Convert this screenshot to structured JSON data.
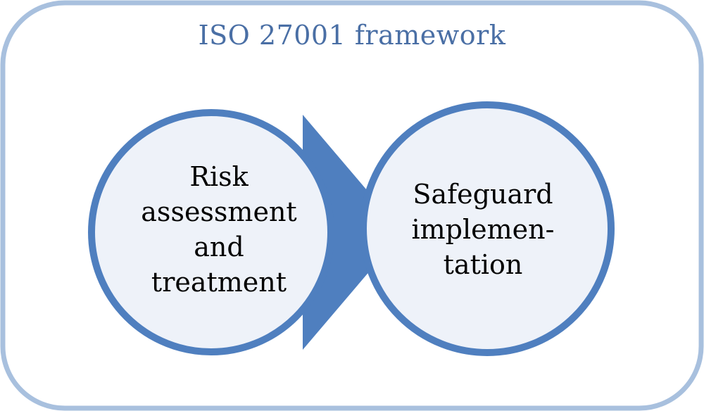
{
  "diagram": {
    "title": "ISO 27001 framework",
    "nodes": [
      {
        "id": "risk",
        "lines": [
          "Risk",
          "assessment",
          "and",
          "treatment"
        ]
      },
      {
        "id": "safeguard",
        "lines": [
          "Safeguard",
          "implemen-",
          "tation"
        ]
      }
    ],
    "edges": [
      {
        "from": "risk",
        "to": "safeguard"
      }
    ],
    "colors": {
      "frame_stroke": "#a8c0de",
      "circle_fill": "#eef2f9",
      "circle_stroke": "#4f7fbf",
      "arrow_fill": "#4f7fbf",
      "title_text": "#4a6fa5",
      "label_text": "#000000"
    }
  }
}
